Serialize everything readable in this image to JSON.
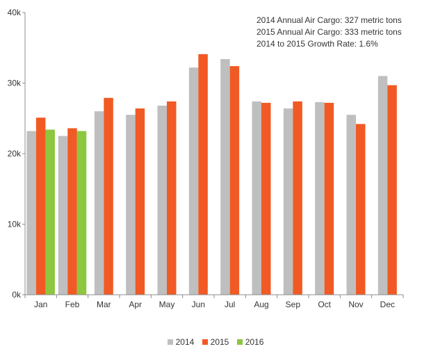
{
  "chart_data": {
    "type": "bar",
    "categories": [
      "Jan",
      "Feb",
      "Mar",
      "Apr",
      "May",
      "Jun",
      "Jul",
      "Aug",
      "Sep",
      "Oct",
      "Nov",
      "Dec"
    ],
    "series": [
      {
        "name": "2014",
        "color": "#bfbfbf",
        "values": [
          23200,
          22500,
          26000,
          25500,
          26800,
          32200,
          33400,
          27400,
          26400,
          27300,
          25500,
          31000
        ]
      },
      {
        "name": "2015",
        "color": "#f15a24",
        "values": [
          25100,
          23600,
          27900,
          26400,
          27400,
          34100,
          32400,
          27200,
          27400,
          27200,
          24200,
          29700
        ]
      },
      {
        "name": "2016",
        "color": "#8dc63f",
        "values": [
          23400,
          23200,
          null,
          null,
          null,
          null,
          null,
          null,
          null,
          null,
          null,
          null
        ]
      }
    ],
    "yticks": [
      {
        "value": 0,
        "label": "0k"
      },
      {
        "value": 10000,
        "label": "10k"
      },
      {
        "value": 20000,
        "label": "20k"
      },
      {
        "value": 30000,
        "label": "30k"
      },
      {
        "value": 40000,
        "label": "40k"
      }
    ],
    "ylim": [
      0,
      40000
    ],
    "grid": false,
    "legend_position": "bottom",
    "annotations": [
      "2014 Annual Air Cargo: 327 metric tons",
      "2015 Annual Air Cargo: 333 metric tons",
      "2014 to 2015 Growth Rate: 1.6%"
    ]
  }
}
